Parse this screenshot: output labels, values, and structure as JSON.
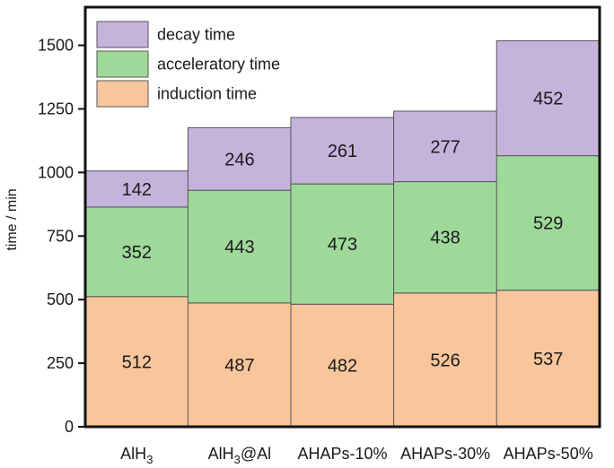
{
  "chart_data": {
    "type": "bar",
    "stacked": true,
    "ylabel": "time / min",
    "ylim": [
      0,
      1650
    ],
    "yticks": [
      0,
      250,
      500,
      750,
      1000,
      1250,
      1500
    ],
    "yticks_text": [
      "0",
      "250",
      "500",
      "750",
      "1000",
      "1250",
      "1500"
    ],
    "categories": [
      {
        "base": "AlH",
        "sub": "3",
        "rest": ""
      },
      {
        "base": "AlH",
        "sub": "3",
        "rest": "@Al"
      },
      {
        "base": "AHAPs-10%",
        "sub": "",
        "rest": ""
      },
      {
        "base": "AHAPs-30%",
        "sub": "",
        "rest": ""
      },
      {
        "base": "AHAPs-50%",
        "sub": "",
        "rest": ""
      }
    ],
    "series": [
      {
        "name": "induction time",
        "color": "#f9c69b",
        "values": [
          512,
          487,
          482,
          526,
          537
        ]
      },
      {
        "name": "acceleratory time",
        "color": "#9fd99a",
        "values": [
          352,
          443,
          473,
          438,
          529
        ]
      },
      {
        "name": "decay time",
        "color": "#c5b3dc",
        "values": [
          142,
          246,
          261,
          277,
          452
        ]
      }
    ],
    "legend_order": [
      2,
      1,
      0
    ],
    "legend_position": "top-left",
    "grid": false
  }
}
